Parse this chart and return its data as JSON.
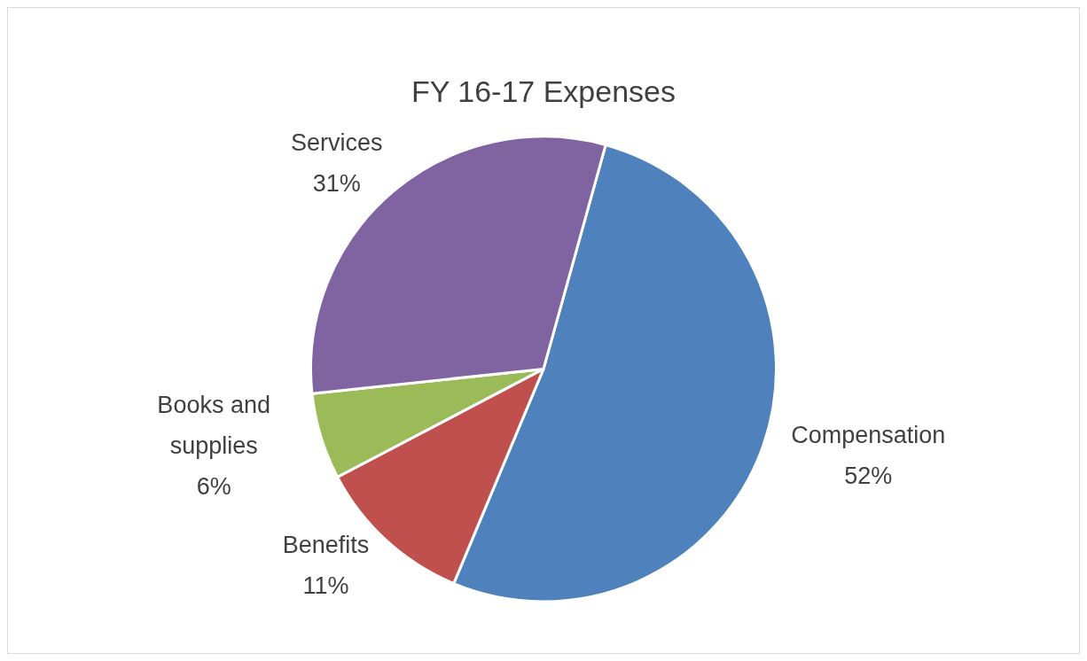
{
  "chart_data": {
    "type": "pie",
    "title": "FY 16-17 Expenses",
    "categories": [
      "Compensation",
      "Benefits",
      "Books and supplies",
      "Services"
    ],
    "values": [
      52,
      11,
      6,
      31
    ],
    "value_labels": [
      "52%",
      "11%",
      "6%",
      "31%"
    ],
    "colors": [
      "#4f81bd",
      "#c0504d",
      "#9bbb59",
      "#8064a2"
    ],
    "legend": false
  }
}
